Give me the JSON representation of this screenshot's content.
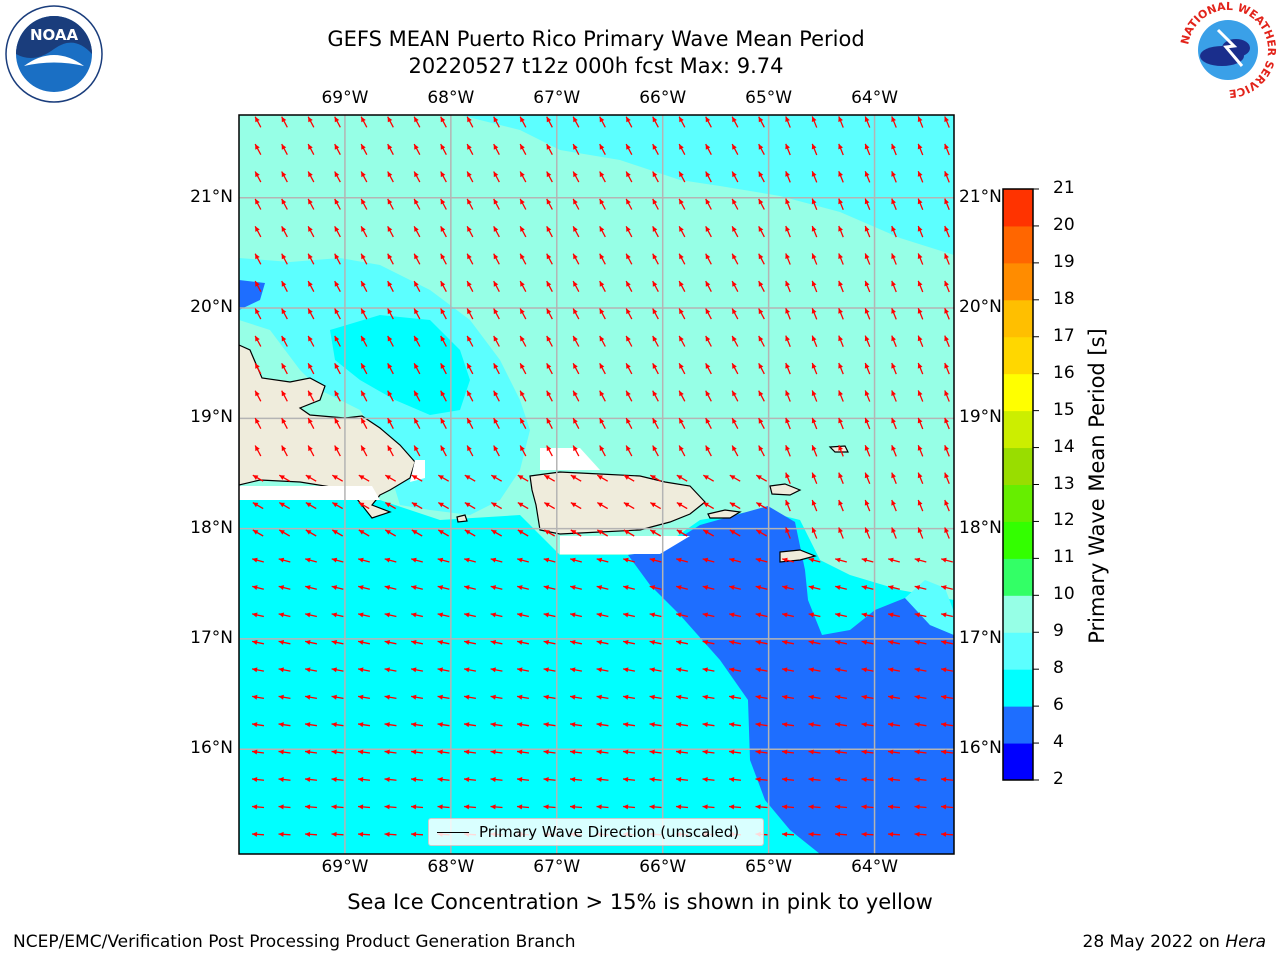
{
  "title": {
    "line1": "GEFS MEAN Puerto Rico Primary Wave Mean Period",
    "line2": "20220527 t12z 000h fcst   Max: 9.74"
  },
  "lon_ticks": [
    "69°W",
    "68°W",
    "67°W",
    "66°W",
    "65°W",
    "64°W"
  ],
  "lat_ticks": [
    "21°N",
    "20°N",
    "19°N",
    "18°N",
    "17°N",
    "16°N"
  ],
  "colorbar": {
    "label": "Primary Wave Mean Period [s]",
    "ticks": [
      "2",
      "4",
      "6",
      "8",
      "9",
      "10",
      "11",
      "12",
      "13",
      "14",
      "15",
      "16",
      "17",
      "18",
      "19",
      "20",
      "21"
    ],
    "colors": [
      "#0000ff",
      "#1e6eff",
      "#00ffff",
      "#5cffff",
      "#96ffe6",
      "#33ff66",
      "#33ff00",
      "#66ee00",
      "#99dd00",
      "#ccee00",
      "#ffff00",
      "#ffd700",
      "#ffbf00",
      "#ff8c00",
      "#ff6600",
      "#ff3300",
      "#ff0000"
    ]
  },
  "map": {
    "lon_range": [
      -70,
      -63.25
    ],
    "lat_range": [
      15.05,
      21.75
    ],
    "arrow_color": "#ff0000",
    "land_color": "#efecdc",
    "colors": {
      "aqua": "#96ffe6",
      "cyan": "#00ffff",
      "lightcyan": "#5cffff",
      "blue": "#1e6eff"
    }
  },
  "legend": {
    "label": "Primary Wave Direction (unscaled)"
  },
  "note": "Sea Ice Concentration > 15% is shown in pink to yellow",
  "footer": {
    "left": "NCEP/EMC/Verification Post Processing Product Generation Branch",
    "right_prefix": "28 May 2022 on ",
    "right_machine": "Hera"
  },
  "logos": {
    "noaa": "NOAA",
    "nws_ring": "NATIONAL WEATHER SERVICE"
  }
}
